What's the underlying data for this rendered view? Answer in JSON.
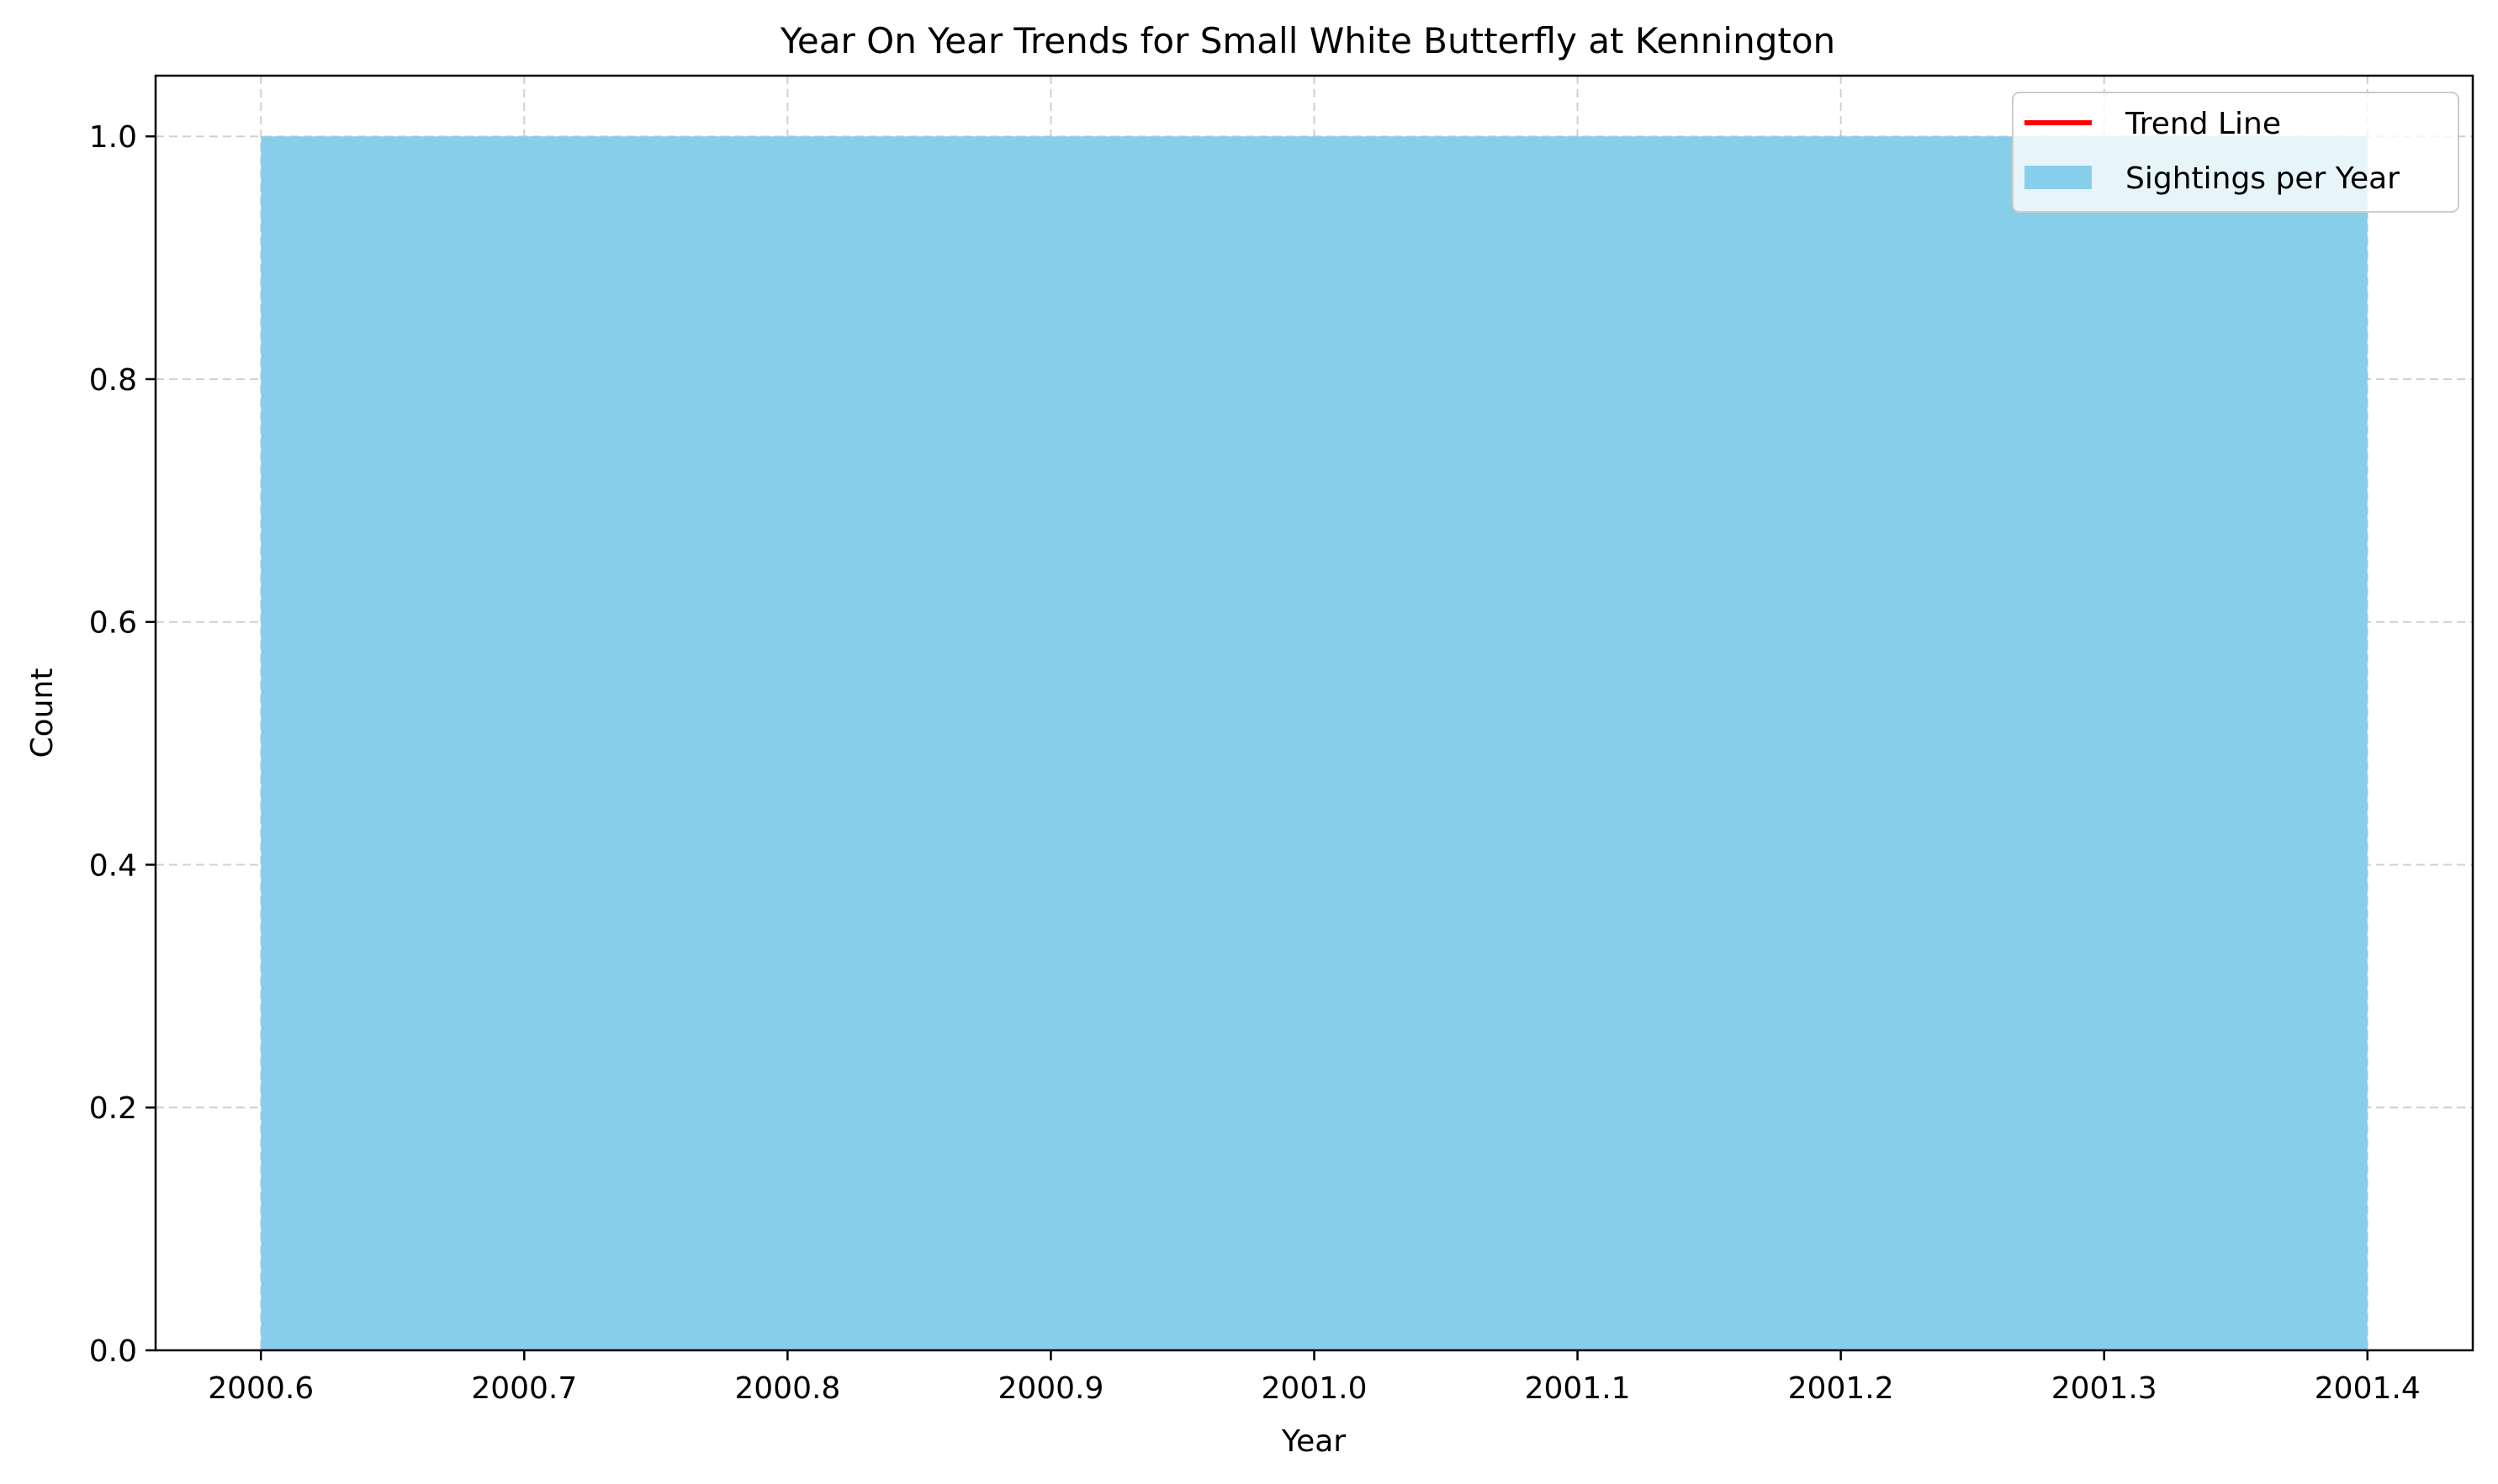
{
  "chart_data": {
    "type": "bar",
    "title": "Year On Year Trends for Small White Butterfly at Kennington",
    "xlabel": "Year",
    "ylabel": "Count",
    "xlim": [
      2000.56,
      2001.44
    ],
    "ylim": [
      0,
      1.05
    ],
    "x_ticks": [
      "2000.6",
      "2000.7",
      "2000.8",
      "2000.9",
      "2001.0",
      "2001.1",
      "2001.2",
      "2001.3",
      "2001.4"
    ],
    "y_ticks": [
      "0.0",
      "0.2",
      "0.4",
      "0.6",
      "0.8",
      "1.0"
    ],
    "grid": true,
    "legend_position": "top-right",
    "series": [
      {
        "name": "Sightings per Year",
        "kind": "bar",
        "color": "#87CEEB",
        "categories": [
          2001
        ],
        "values": [
          1
        ],
        "bar_width": 0.8
      },
      {
        "name": "Trend Line",
        "kind": "line",
        "color": "#FF0000",
        "x": [],
        "y": []
      }
    ]
  }
}
